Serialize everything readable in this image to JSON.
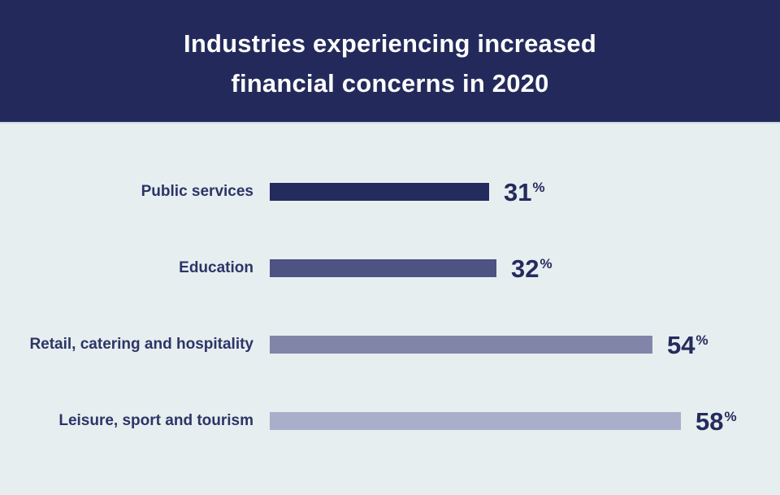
{
  "header": {
    "title_line1": "Industries experiencing increased",
    "title_line2": "financial concerns in 2020"
  },
  "chart_data": {
    "type": "bar",
    "orientation": "horizontal",
    "title": "Industries experiencing increased financial concerns in 2020",
    "categories": [
      "Public services",
      "Education",
      "Retail, catering and hospitality",
      "Leisure, sport and tourism"
    ],
    "values": [
      31,
      32,
      54,
      58
    ],
    "value_labels": [
      "31",
      "32",
      "54",
      "58"
    ],
    "unit": "%",
    "xlim": [
      0,
      58
    ],
    "grid": false,
    "legend": false,
    "bar_colors": [
      "#242b5d",
      "#4d5383",
      "#8186a8",
      "#a9aeca"
    ]
  },
  "colors": {
    "header_bg": "#232a5b",
    "body_bg": "#e7eef0",
    "label_text": "#2c3566",
    "value_text": "#242b5d",
    "title_text": "#fdfdfd"
  }
}
